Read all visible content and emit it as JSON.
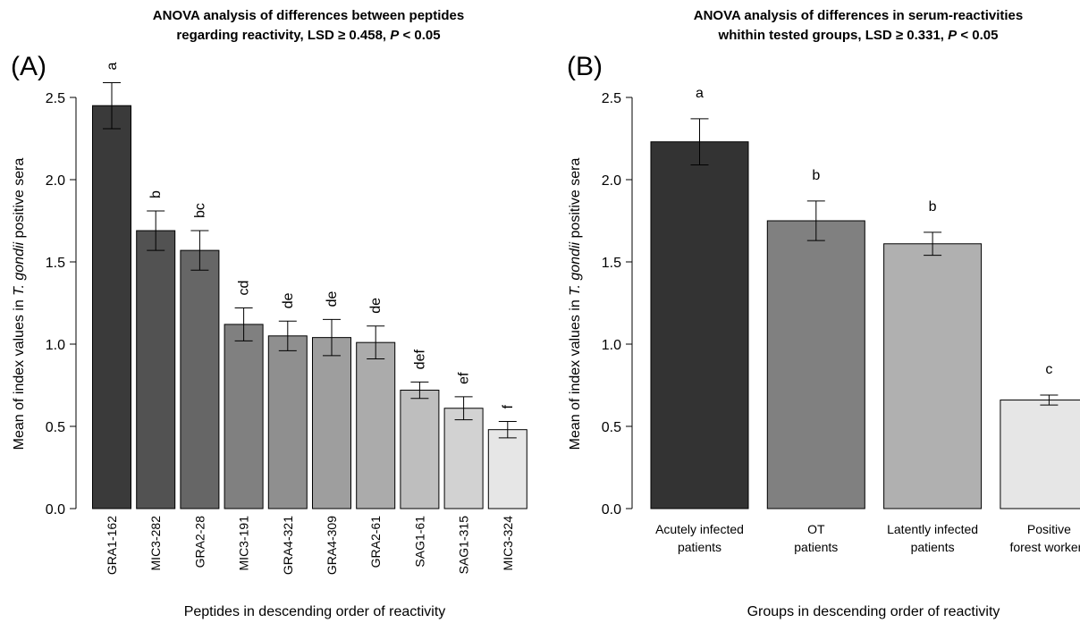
{
  "chart_data": [
    {
      "type": "bar",
      "panel_label": "(A)",
      "title_line1": "ANOVA analysis of differences between peptides",
      "title_line2_prefix": "regarding reactivity, LSD ≥ 0.458, ",
      "title_line2_p": "P",
      "title_line2_suffix": " < 0.05",
      "xlabel": "Peptides in descending order of reactivity",
      "ylabel_prefix": "Mean of index values in ",
      "ylabel_italic": "T. gondii",
      "ylabel_suffix": " positive sera",
      "ylim": [
        0,
        2.5
      ],
      "yticks": [
        "0.0",
        "0.5",
        "1.0",
        "1.5",
        "2.0",
        "2.5"
      ],
      "categories": [
        "GRA1-162",
        "MIC3-282",
        "GRA2-28",
        "MIC3-191",
        "GRA4-321",
        "GRA4-309",
        "GRA2-61",
        "SAG1-61",
        "SAG1-315",
        "MIC3-324"
      ],
      "values": [
        2.45,
        1.69,
        1.57,
        1.12,
        1.05,
        1.04,
        1.01,
        0.72,
        0.61,
        0.48
      ],
      "error": [
        0.14,
        0.12,
        0.12,
        0.1,
        0.09,
        0.11,
        0.1,
        0.05,
        0.07,
        0.05
      ],
      "significance": [
        "a",
        "b",
        "bc",
        "cd",
        "de",
        "de",
        "de",
        "def",
        "ef",
        "f"
      ],
      "colors": [
        "#3a3a3a",
        "#525252",
        "#666666",
        "#808080",
        "#8f8f8f",
        "#9e9e9e",
        "#ababab",
        "#bebebe",
        "#d2d2d2",
        "#e6e6e6"
      ]
    },
    {
      "type": "bar",
      "panel_label": "(B)",
      "title_line1": "ANOVA analysis of differences in serum-reactivities",
      "title_line2_prefix": "whithin tested groups, LSD ≥ 0.331, ",
      "title_line2_p": "P",
      "title_line2_suffix": " < 0.05",
      "xlabel": "Groups in descending order of reactivity",
      "ylabel_prefix": "Mean of index values in ",
      "ylabel_italic": "T. gondii",
      "ylabel_suffix": " positive sera",
      "ylim": [
        0,
        2.5
      ],
      "yticks": [
        "0.0",
        "0.5",
        "1.0",
        "1.5",
        "2.0",
        "2.5"
      ],
      "categories": [
        [
          "Acutely infected",
          "patients"
        ],
        [
          "OT",
          "patients"
        ],
        [
          "Latently infected",
          "patients"
        ],
        [
          "Positive",
          "forest workers"
        ]
      ],
      "values": [
        2.23,
        1.75,
        1.61,
        0.66
      ],
      "error": [
        0.14,
        0.12,
        0.07,
        0.03
      ],
      "significance": [
        "a",
        "b",
        "b",
        "c"
      ],
      "colors": [
        "#333333",
        "#808080",
        "#b0b0b0",
        "#e6e6e6"
      ]
    }
  ]
}
